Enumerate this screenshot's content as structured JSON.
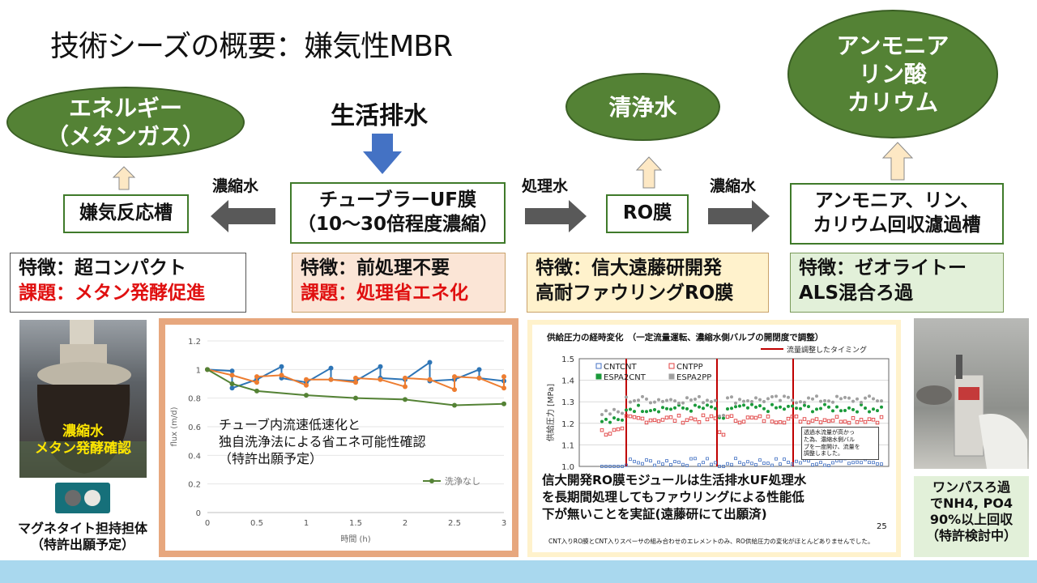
{
  "title": "技術シーズの概要：嫌気性MBR",
  "inputs": {
    "wastewater": "生活排水"
  },
  "outputs": {
    "energy": [
      "エネルギー",
      "（メタンガス）"
    ],
    "clean_water": "清浄水",
    "nutrients": [
      "アンモニア",
      "リン酸",
      "カリウム"
    ]
  },
  "process": {
    "anaerobic": "嫌気反応槽",
    "uf": [
      "チューブラーUF膜",
      "（10～30倍程度濃縮）"
    ],
    "ro": "RO膜",
    "recovery": [
      "アンモニア、リン、",
      "カリウム回収濾過槽"
    ]
  },
  "flow_labels": {
    "concentrate_left": "濃縮水",
    "treated": "処理水",
    "concentrate_right": "濃縮水"
  },
  "features": {
    "anaerobic": {
      "feature": "特徴：超コンパクト",
      "issue": "課題：メタン発酵促進"
    },
    "uf": {
      "feature": "特徴：前処理不要",
      "issue": "課題：処理省エネ化"
    },
    "ro": {
      "line1": "特徴：信大遠藤研開発",
      "line2": "高耐ファウリングRO膜"
    },
    "recovery": {
      "line1": "特徴：ゼオライトー",
      "line2": "ALS混合ろ過"
    }
  },
  "left_photo": {
    "overlay": [
      "濃縮水",
      "メタン発酵確認"
    ],
    "caption": [
      "マグネタイト担持担体",
      "（特許出願予定）"
    ]
  },
  "uf_panel": {
    "annotation": [
      "チューブ内流速低速化と",
      "独自洗浄法による省エネ可能性確認",
      "（特許出願予定）"
    ],
    "legend_label": "洗浄なし"
  },
  "ro_panel": {
    "title": "供給圧力の経時変化　（一定流量運転、濃縮水側バルブの開閉度で調整）",
    "legend_timing": "流量調整したタイミング",
    "legend_series": [
      "CNTCNT",
      "CNTPP",
      "ESPA2CNT",
      "ESPA2PP"
    ],
    "note": [
      "透過水流量が高かっ",
      "た為、濃縮水側バル",
      "ブを一度開け、流量を",
      "調整しました。"
    ],
    "page_number": "25",
    "footnote": "CNT入りRO膜とCNT入りスペーサの組み合わせのエレメントのみ、RO供給圧力の変化がほとんどありませんでした。",
    "statement": [
      "信大開発RO膜モジュールは生活排水UF処理水",
      "を長期間処理してもファウリングによる性能低",
      "下が無いことを実証(遠藤研にて出願済)"
    ]
  },
  "right_photo": {
    "caption": [
      "ワンパスろ過",
      "でNH4, PO4",
      "90%以上回収",
      "（特許検討中）"
    ]
  },
  "colors": {
    "ellipse": "#548235",
    "box_border": "#3f7a2a",
    "arrow_blue": "#4472c4",
    "arrow_gray": "#595959",
    "red": "#e01010",
    "footer": "#a9d8ee"
  },
  "chart_data": [
    {
      "type": "line",
      "xlabel": "時間 (h)",
      "ylabel": "flux (m/d)",
      "xlim": [
        0,
        3
      ],
      "ylim": [
        0,
        1.2
      ],
      "x_ticks": [
        0,
        0.5,
        1,
        1.5,
        2,
        2.5,
        3
      ],
      "y_ticks": [
        0,
        0.2,
        0.4,
        0.6,
        0.8,
        1,
        1.2
      ],
      "series": [
        {
          "name": "洗浄なし",
          "color": "#548235",
          "x": [
            0,
            0.25,
            0.5,
            1,
            1.5,
            2,
            2.5,
            3
          ],
          "y": [
            1.0,
            0.9,
            0.85,
            0.82,
            0.8,
            0.79,
            0.75,
            0.76
          ]
        },
        {
          "color": "#ed7d31",
          "x": [
            0,
            0.25,
            0.5,
            0.5,
            0.75,
            1,
            1,
            1.25,
            1.5,
            1.5,
            1.75,
            2,
            2,
            2.25,
            2.5,
            2.5,
            2.75,
            3,
            3
          ],
          "y": [
            1.0,
            0.96,
            0.91,
            0.95,
            0.96,
            0.89,
            0.93,
            0.93,
            0.91,
            0.94,
            0.93,
            0.88,
            0.94,
            0.93,
            0.86,
            0.95,
            0.94,
            0.87,
            0.95
          ]
        },
        {
          "color": "#2e75b6",
          "x": [
            0,
            0.25,
            0.25,
            0.5,
            0.75,
            0.75,
            1,
            1.25,
            1.25,
            1.5,
            1.75,
            1.75,
            2,
            2.25,
            2.25,
            2.5,
            2.75,
            2.75,
            3
          ],
          "y": [
            1.0,
            0.99,
            0.87,
            0.93,
            1.02,
            0.94,
            0.91,
            1.01,
            0.93,
            0.92,
            1.02,
            0.94,
            0.93,
            1.05,
            0.92,
            0.93,
            1.0,
            0.94,
            0.92
          ]
        }
      ]
    },
    {
      "type": "scatter",
      "title": "供給圧力の経時変化",
      "ylabel": "供給圧力 [MPa]",
      "ylim": [
        1.0,
        1.5
      ],
      "y_ticks": [
        1.0,
        1.1,
        1.2,
        1.3,
        1.4,
        1.5
      ],
      "series": [
        {
          "name": "CNTCNT",
          "color": "#4472c4",
          "level": 1.02
        },
        {
          "name": "CNTPP",
          "color": "#e04040",
          "level": 1.22
        },
        {
          "name": "ESPA2CNT",
          "color": "#1a9a3a",
          "level": 1.27
        },
        {
          "name": "ESPA2PP",
          "color": "#a0a0a0",
          "level": 1.31
        }
      ]
    }
  ]
}
